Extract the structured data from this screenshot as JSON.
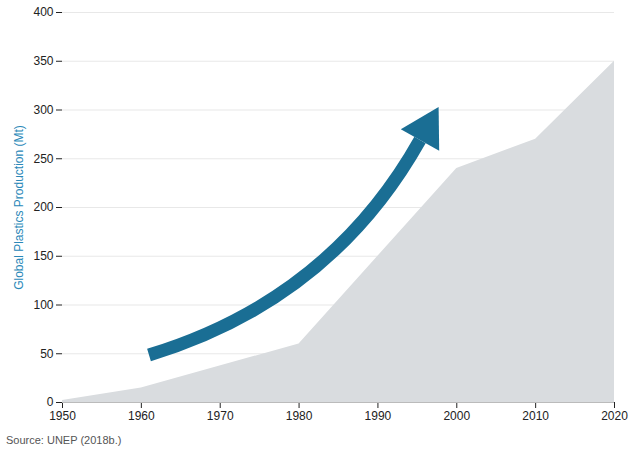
{
  "chart_data": {
    "type": "area",
    "y_label": "Global Plastics Production (Mt)",
    "caption": "Source: UNEP (2018b.)",
    "x": [
      1950,
      1960,
      1980,
      2000,
      2010,
      2020
    ],
    "values": [
      2,
      15,
      60,
      240,
      270,
      350
    ],
    "color": "#d9dcdf",
    "xlim": [
      1950,
      2020
    ],
    "xticks": [
      1950,
      1960,
      1970,
      1980,
      1990,
      2000,
      2010,
      2020
    ],
    "ylim": [
      0,
      400
    ],
    "yticks": [
      0,
      50,
      100,
      150,
      200,
      250,
      300,
      350,
      400
    ],
    "grid": true
  }
}
